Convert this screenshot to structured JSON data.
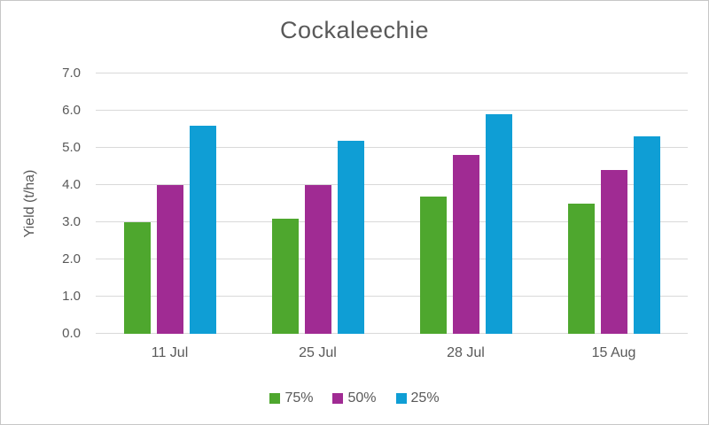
{
  "chart_data": {
    "type": "bar",
    "title": "Cockaleechie",
    "xlabel": "",
    "ylabel": "Yield (t/ha)",
    "categories": [
      "11 Jul",
      "25 Jul",
      "28 Jul",
      "15 Aug"
    ],
    "series": [
      {
        "name": "75%",
        "color": "#4EA72E",
        "values": [
          3.0,
          3.1,
          3.7,
          3.5
        ]
      },
      {
        "name": "50%",
        "color": "#A02B93",
        "values": [
          4.0,
          4.0,
          4.8,
          4.4
        ]
      },
      {
        "name": "25%",
        "color": "#0F9ED5",
        "values": [
          5.6,
          5.2,
          5.9,
          5.3
        ]
      }
    ],
    "ylim": [
      0,
      7
    ],
    "ytick_step": 1.0,
    "ytick_labels": [
      "0.0",
      "1.0",
      "2.0",
      "3.0",
      "4.0",
      "5.0",
      "6.0",
      "7.0"
    ],
    "grid": true,
    "legend_position": "bottom"
  },
  "colors": {
    "text": "#595959",
    "gridline": "#D9D9D9",
    "frame_border": "#C6C6C6",
    "background": "#FFFFFF"
  }
}
